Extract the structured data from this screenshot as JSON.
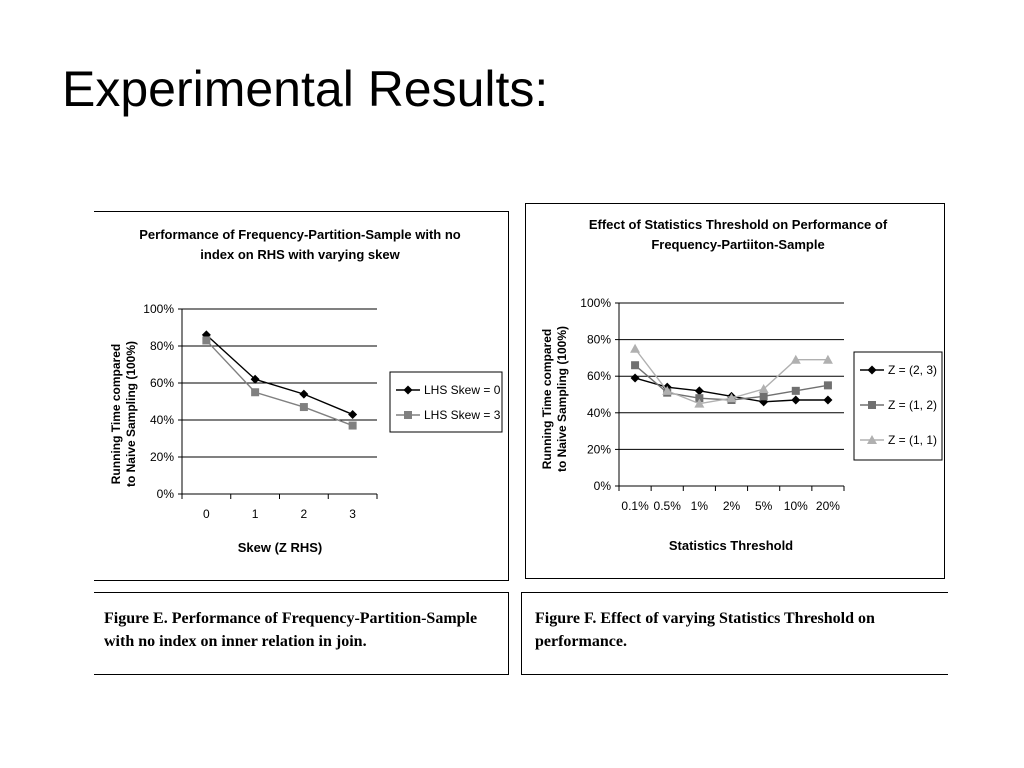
{
  "slide": {
    "title": "Experimental Results:"
  },
  "chart_data": [
    {
      "type": "line",
      "title": "Performance of Frequency-Partition-Sample with no index on RHS with varying skew",
      "title_lines": [
        "Performance of Frequency-Partition-Sample with no",
        "index on RHS with varying skew"
      ],
      "xlabel": "Skew (Z RHS)",
      "ylabel": "Running Time compared to Naive Sampling (100%)",
      "ylabel_lines": [
        "Running Time compared",
        "to Naive Sampling (100%)"
      ],
      "categories": [
        "0",
        "1",
        "2",
        "3"
      ],
      "ylim": [
        0,
        100
      ],
      "yticks": [
        "0%",
        "20%",
        "40%",
        "60%",
        "80%",
        "100%"
      ],
      "grid": true,
      "legend_position": "right",
      "series": [
        {
          "name": "LHS Skew  = 0",
          "values": [
            86,
            62,
            54,
            43
          ],
          "marker": "diamond",
          "color": "#000000"
        },
        {
          "name": "LHS Skew  = 3",
          "values": [
            83,
            55,
            47,
            37
          ],
          "marker": "square",
          "color": "#808080"
        }
      ]
    },
    {
      "type": "line",
      "title": "Effect of Statistics Threshold on Performance of Frequency-Partiiton-Sample",
      "title_lines": [
        "Effect of Statistics Threshold on Performance of",
        "Frequency-Partiiton-Sample"
      ],
      "xlabel": "Statistics Threshold",
      "ylabel": "Running Time compared to Naive Sampling (100%)",
      "ylabel_lines": [
        "Running Time compared",
        "to Naive Sampling (100%)"
      ],
      "categories": [
        "0.1%",
        "0.5%",
        "1%",
        "2%",
        "5%",
        "10%",
        "20%"
      ],
      "ylim": [
        0,
        100
      ],
      "yticks": [
        "0%",
        "20%",
        "40%",
        "60%",
        "80%",
        "100%"
      ],
      "grid": true,
      "legend_position": "right",
      "series": [
        {
          "name": "Z = (2, 3)",
          "values": [
            59,
            54,
            52,
            49,
            46,
            47,
            47
          ],
          "marker": "diamond",
          "color": "#000000"
        },
        {
          "name": "Z = (1, 2)",
          "values": [
            66,
            51,
            48,
            47,
            49,
            52,
            55
          ],
          "marker": "square",
          "color": "#707070"
        },
        {
          "name": "Z = (1, 1)",
          "values": [
            75,
            52,
            45,
            48,
            53,
            69,
            69
          ],
          "marker": "triangle",
          "color": "#b0b0b0"
        }
      ]
    }
  ],
  "captions": {
    "e": "Figure E. Performance of Frequency-Partition-Sample\nwith no index on inner relation in join.",
    "f": "Figure F. Effect of varying Statistics Threshold on\nperformance."
  }
}
